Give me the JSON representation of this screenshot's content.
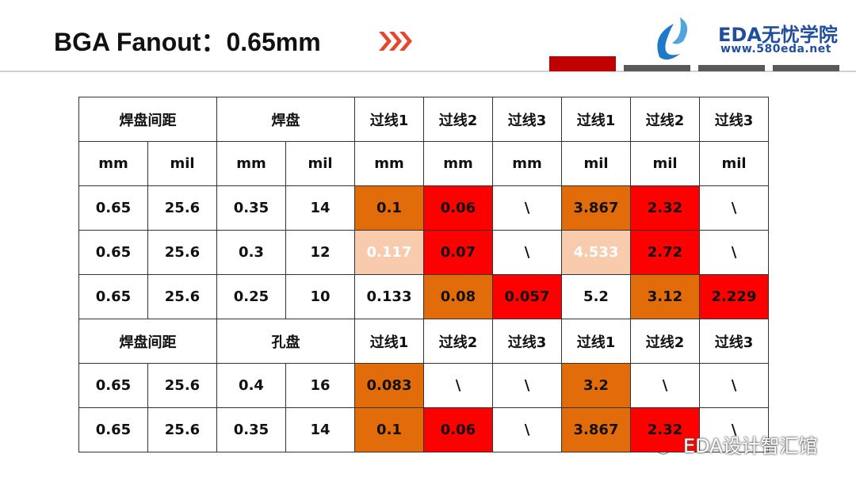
{
  "header": {
    "title": "BGA Fanout：0.65mm",
    "logo_name": "EDA无忧学院",
    "logo_url": "www.580eda.net"
  },
  "table": {
    "rows": [
      [
        "焊盘间距",
        "焊盘",
        "过线1",
        "过线2",
        "过线3",
        "过线1",
        "过线2",
        "过线3"
      ],
      [
        "mm",
        "mil",
        "mm",
        "mil",
        "mm",
        "mm",
        "mm",
        "mil",
        "mil",
        "mil"
      ],
      [
        "0.65",
        "25.6",
        "0.35",
        "14",
        "0.1",
        "0.06",
        "\\",
        "3.867",
        "2.32",
        "\\"
      ],
      [
        "0.65",
        "25.6",
        "0.3",
        "12",
        "0.117",
        "0.07",
        "\\",
        "4.533",
        "2.72",
        "\\"
      ],
      [
        "0.65",
        "25.6",
        "0.25",
        "10",
        "0.133",
        "0.08",
        "0.057",
        "5.2",
        "3.12",
        "2.229"
      ],
      [
        "焊盘间距",
        "孔盘",
        "过线1",
        "过线2",
        "过线3",
        "过线1",
        "过线2",
        "过线3"
      ],
      [
        "0.65",
        "25.6",
        "0.4",
        "16",
        "0.083",
        "\\",
        "\\",
        "3.2",
        "\\",
        "\\"
      ],
      [
        "0.65",
        "25.6",
        "0.35",
        "14",
        "0.1",
        "0.06",
        "\\",
        "3.867",
        "2.32",
        "\\"
      ]
    ],
    "cell_fills": [
      [
        null,
        null,
        null,
        null,
        null,
        null,
        null,
        null
      ],
      [
        null,
        null,
        null,
        null,
        null,
        null,
        null,
        null,
        null,
        null
      ],
      [
        null,
        null,
        null,
        null,
        "#e36c0a",
        "#ff0000",
        null,
        "#e36c0a",
        "#ff0000",
        null
      ],
      [
        null,
        null,
        null,
        null,
        "#f8cbad",
        "#ff0000",
        null,
        "#f8cbad",
        "#ff0000",
        null
      ],
      [
        null,
        null,
        null,
        null,
        null,
        "#e36c0a",
        "#ff0000",
        null,
        "#e36c0a",
        "#ff0000"
      ],
      [
        null,
        null,
        null,
        null,
        null,
        null,
        null,
        null
      ],
      [
        null,
        null,
        null,
        null,
        "#e36c0a",
        null,
        null,
        "#e36c0a",
        null,
        null
      ],
      [
        null,
        null,
        null,
        null,
        "#e36c0a",
        "#ff0000",
        null,
        "#e36c0a",
        "#ff0000",
        null
      ]
    ]
  },
  "watermark": "EDA设计智汇馆"
}
